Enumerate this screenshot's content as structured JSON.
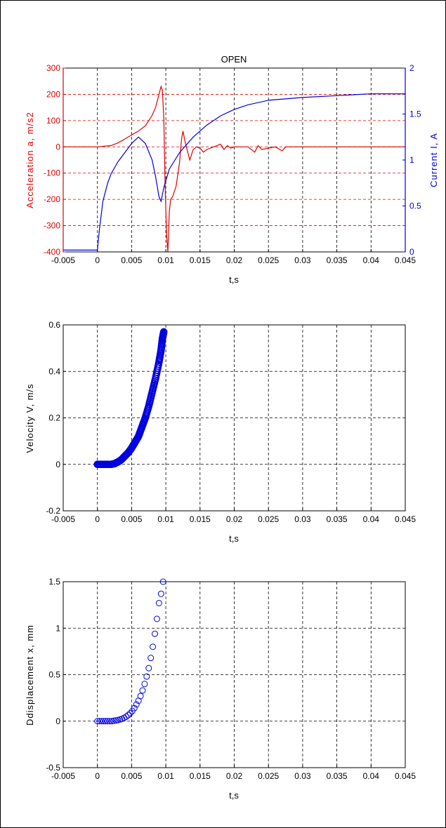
{
  "colors": {
    "accel": "#e00000",
    "current": "#0000e0",
    "marker": "#0000e0",
    "grid": "#000000",
    "accel_grid": "#e00000"
  },
  "chart_data": [
    {
      "type": "line",
      "title": "OPEN",
      "xlabel": "t,s",
      "ylabel": "Acceleration a, m/s2",
      "ylabel_right": "Current I, A",
      "xlim": [
        -0.005,
        0.045
      ],
      "ylim": [
        -400,
        300
      ],
      "ylim_right": [
        0,
        2
      ],
      "xticks": [
        "-0.005",
        "0",
        "0.005",
        "0.01",
        "0.015",
        "0.02",
        "0.025",
        "0.03",
        "0.035",
        "0.04",
        "0.045"
      ],
      "yticks": [
        "300",
        "200",
        "100",
        "0",
        "-100",
        "-200",
        "-300",
        "-400"
      ],
      "yticks_right": [
        "2",
        "1.5",
        "1",
        "0.5",
        "0"
      ],
      "grid": true,
      "series": [
        {
          "axis": "left",
          "x": [
            -0.005,
            0.0,
            0.002,
            0.003,
            0.004,
            0.005,
            0.006,
            0.007,
            0.0075,
            0.008,
            0.0085,
            0.009,
            0.0093,
            0.0095,
            0.0097,
            0.0099,
            0.0101,
            0.0103,
            0.0105,
            0.0107,
            0.011,
            0.0115,
            0.012,
            0.0123,
            0.0125,
            0.0128,
            0.013,
            0.0135,
            0.014,
            0.0145,
            0.015,
            0.0155,
            0.016,
            0.017,
            0.018,
            0.0185,
            0.019,
            0.0195,
            0.02,
            0.022,
            0.023,
            0.0235,
            0.024,
            0.025,
            0.026,
            0.027,
            0.0275,
            0.028,
            0.03,
            0.035,
            0.04,
            0.045
          ],
          "y": [
            0,
            0,
            5,
            15,
            30,
            45,
            60,
            80,
            100,
            120,
            150,
            200,
            230,
            215,
            110,
            -150,
            -330,
            -400,
            -250,
            -200,
            -190,
            -150,
            -60,
            30,
            60,
            20,
            0,
            -50,
            -10,
            0,
            -5,
            -20,
            -10,
            0,
            10,
            -10,
            5,
            -5,
            0,
            0,
            -20,
            5,
            -10,
            -5,
            0,
            -15,
            0,
            0,
            0,
            0,
            0,
            0
          ]
        },
        {
          "axis": "right",
          "x": [
            -0.005,
            0.0,
            0.0003,
            0.0008,
            0.0015,
            0.002,
            0.003,
            0.004,
            0.005,
            0.006,
            0.007,
            0.008,
            0.0085,
            0.009,
            0.0093,
            0.0097,
            0.0105,
            0.012,
            0.014,
            0.016,
            0.018,
            0.02,
            0.022,
            0.025,
            0.03,
            0.035,
            0.04,
            0.045
          ],
          "y": [
            0.02,
            0.02,
            0.25,
            0.55,
            0.75,
            0.85,
            0.98,
            1.08,
            1.18,
            1.25,
            1.18,
            1.0,
            0.82,
            0.6,
            0.55,
            0.7,
            0.9,
            1.08,
            1.25,
            1.38,
            1.48,
            1.55,
            1.6,
            1.65,
            1.68,
            1.7,
            1.72,
            1.72
          ]
        }
      ]
    },
    {
      "type": "scatter",
      "xlabel": "t,s",
      "ylabel": "Velocity V, m/s",
      "xlim": [
        -0.005,
        0.045
      ],
      "ylim": [
        -0.2,
        0.6
      ],
      "xticks": [
        "-0.005",
        "0",
        "0.005",
        "0.01",
        "0.015",
        "0.02",
        "0.025",
        "0.03",
        "0.035",
        "0.04",
        "0.045"
      ],
      "yticks": [
        "0.6",
        "0.4",
        "0.2",
        "0",
        "-0.2"
      ],
      "grid": true,
      "series": [
        {
          "x": [
            0.0,
            0.0005,
            0.001,
            0.0015,
            0.002,
            0.0025,
            0.003,
            0.0035,
            0.004,
            0.0045,
            0.005,
            0.0055,
            0.006,
            0.0065,
            0.007,
            0.0075,
            0.008,
            0.0085,
            0.009,
            0.0093,
            0.0095,
            0.0097
          ],
          "y": [
            0.0,
            0.0,
            0.0,
            0.0,
            0.0,
            0.003,
            0.01,
            0.02,
            0.035,
            0.05,
            0.07,
            0.095,
            0.12,
            0.16,
            0.2,
            0.25,
            0.31,
            0.37,
            0.44,
            0.49,
            0.54,
            0.57
          ]
        }
      ]
    },
    {
      "type": "scatter",
      "xlabel": "t,s",
      "ylabel": "Ddisplacement x, mm",
      "xlim": [
        -0.005,
        0.045
      ],
      "ylim": [
        -0.5,
        1.5
      ],
      "xticks": [
        "-0.005",
        "0",
        "0.005",
        "0.01",
        "0.015",
        "0.02",
        "0.025",
        "0.03",
        "0.035",
        "0.04",
        "0.045"
      ],
      "yticks": [
        "1.5",
        "1",
        "0.5",
        "0",
        "-0.5"
      ],
      "grid": true,
      "series": [
        {
          "x": [
            0.0,
            0.0003,
            0.0006,
            0.0009,
            0.0012,
            0.0015,
            0.0018,
            0.0021,
            0.0024,
            0.0027,
            0.003,
            0.0033,
            0.0036,
            0.0039,
            0.0042,
            0.0045,
            0.0048,
            0.0051,
            0.0054,
            0.0057,
            0.006,
            0.0063,
            0.0066,
            0.0069,
            0.0072,
            0.0075,
            0.0078,
            0.0081,
            0.0084,
            0.0087,
            0.009,
            0.0093,
            0.0096
          ],
          "y": [
            0.0,
            0.0,
            0.0,
            0.0,
            0.0,
            0.0,
            0.0,
            0.0,
            0.005,
            0.008,
            0.012,
            0.018,
            0.025,
            0.035,
            0.048,
            0.065,
            0.085,
            0.11,
            0.14,
            0.18,
            0.22,
            0.27,
            0.33,
            0.4,
            0.48,
            0.57,
            0.68,
            0.8,
            0.94,
            1.1,
            1.27,
            1.37,
            1.5
          ]
        }
      ]
    }
  ]
}
